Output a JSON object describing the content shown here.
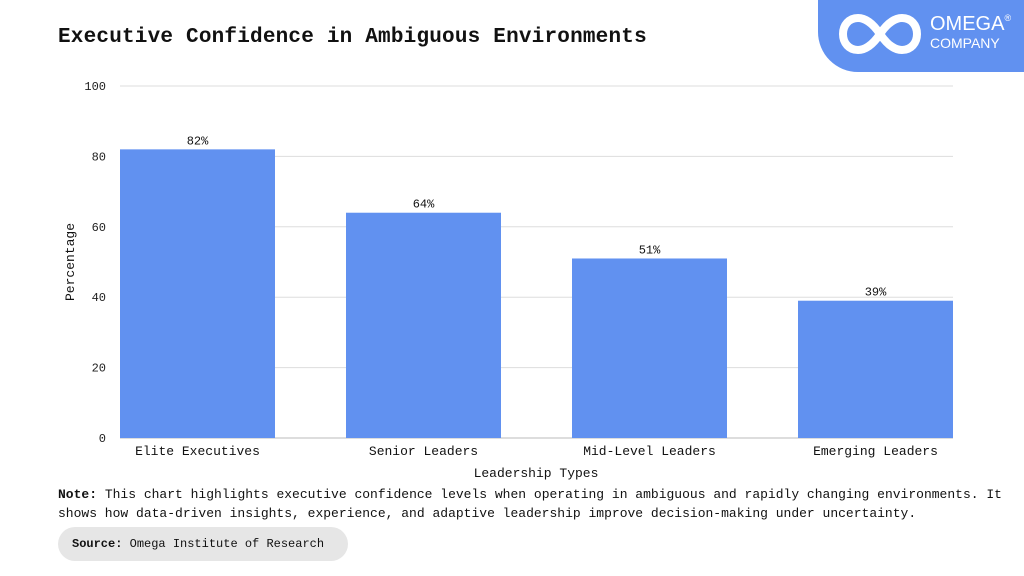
{
  "title": "Executive Confidence in Ambiguous Environments",
  "logo": {
    "name": "OMEGA",
    "mark": "®",
    "sub": "COMPANY"
  },
  "colors": {
    "bar": "#6191f0",
    "grid": "#dddddd",
    "logo_bg": "#6191f0"
  },
  "chart_data": {
    "type": "bar",
    "title": "Executive Confidence in Ambiguous Environments",
    "categories": [
      "Elite Executives",
      "Senior Leaders",
      "Mid-Level Leaders",
      "Emerging Leaders"
    ],
    "values": [
      82,
      64,
      51,
      39
    ],
    "labels": [
      "82%",
      "64%",
      "51%",
      "39%"
    ],
    "xlabel": "Leadership Types",
    "ylabel": "Percentage",
    "ylim": [
      0,
      100
    ],
    "yticks": [
      0,
      20,
      40,
      60,
      80,
      100
    ],
    "grid": true
  },
  "note": {
    "label": "Note:",
    "text": " This chart highlights executive confidence levels when operating in ambiguous and rapidly changing environments. It shows how data-driven insights, experience, and adaptive leadership improve decision-making under uncertainty."
  },
  "source": {
    "label": "Source:",
    "text": " Omega Institute of Research"
  }
}
